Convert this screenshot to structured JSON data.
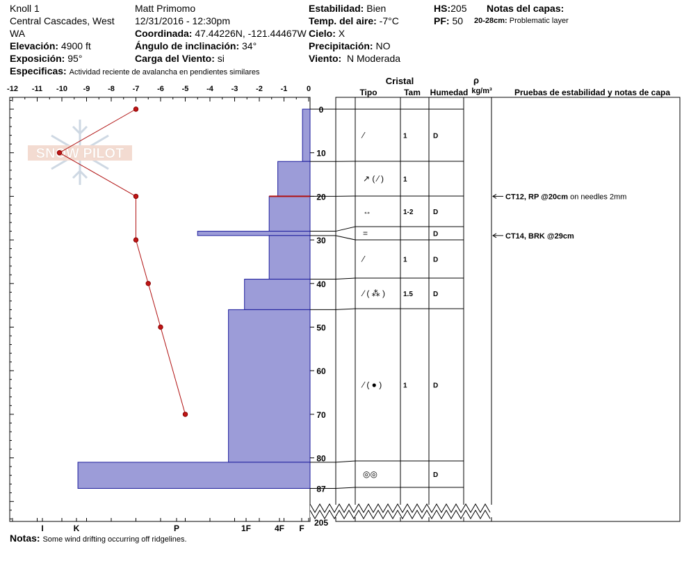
{
  "header": {
    "location": "Knoll 1",
    "region": "Central Cascades, West",
    "state": "WA",
    "elevation_label": "Elevación:",
    "elevation": "4900 ft",
    "aspect_label": "Exposición:",
    "aspect": "95°",
    "specifics_label": "Especificas:",
    "specifics": "Actividad reciente de avalancha en pendientes similares",
    "observer": "Matt Primomo",
    "datetime": "12/31/2016 - 12:30pm",
    "coord_label": "Coordinada:",
    "coord": "47.44226N, -121.44467W",
    "slope_label": "Ángulo de inclinación:",
    "slope": "34°",
    "wind_load_label": "Carga del Viento:",
    "wind_load": "si",
    "stability_label": "Estabilidad:",
    "stability": "Bien",
    "air_temp_label": "Temp. del aire:",
    "air_temp": "-7°C",
    "sky_label": "Cielo:",
    "sky": "X",
    "precip_label": "Precipitación:",
    "precip": "NO",
    "wind_label": "Viento:",
    "wind": "N Moderada",
    "hs_label": "HS:",
    "hs": "205",
    "pf_label": "PF:",
    "pf": "50",
    "notes_layers_label": "Notas del capas:",
    "layer_note_depth": "20-28cm:",
    "layer_note": "Problematic layer"
  },
  "footer": {
    "notes_label": "Notas:",
    "notes": "Some wind drifting occurring off ridgelines."
  },
  "watermark": "SNOW PILOT",
  "table": {
    "crystal_label": "Cristal",
    "rho_label": "ρ",
    "type_label": "Tipo",
    "size_label": "Tam",
    "moisture_label": "Humedad",
    "density_unit": "kg/m³",
    "tests_label": "Pruebas de estabilidad y notas de capa"
  },
  "chart_data": {
    "type": "snow-profile",
    "temp_axis": {
      "ticks": [
        -12,
        -11,
        -10,
        -9,
        -8,
        -7,
        -6,
        -5,
        -4,
        -3,
        -2,
        -1,
        0
      ],
      "range": [
        -12,
        0
      ]
    },
    "depth_ticks": [
      0,
      10,
      20,
      30,
      40,
      50,
      60,
      70,
      80,
      87
    ],
    "depth_bottom_label": "205",
    "hardness_labels": [
      "I",
      "K",
      "P",
      "1F",
      "4F",
      "F"
    ],
    "temperature_profile": [
      {
        "depth": 0,
        "temp": -7.0
      },
      {
        "depth": 10,
        "temp": -10.1
      },
      {
        "depth": 20,
        "temp": -7.0
      },
      {
        "depth": 30,
        "temp": -7.0
      },
      {
        "depth": 40,
        "temp": -6.5
      },
      {
        "depth": 50,
        "temp": -6.0
      },
      {
        "depth": 70,
        "temp": -5.0
      }
    ],
    "layers": [
      {
        "top": 0,
        "bottom": 12,
        "hardness": -0.25
      },
      {
        "top": 12,
        "bottom": 20,
        "hardness": -1.25
      },
      {
        "top": 20,
        "bottom": 28,
        "hardness": -1.6
      },
      {
        "top": 28,
        "bottom": 29,
        "hardness": -4.5
      },
      {
        "top": 29,
        "bottom": 39,
        "hardness": -1.6
      },
      {
        "top": 39,
        "bottom": 46,
        "hardness": -2.6
      },
      {
        "top": 46,
        "bottom": 81,
        "hardness": -3.25
      },
      {
        "top": 81,
        "bottom": 87,
        "hardness": -9.35
      }
    ],
    "crystal_rows": [
      {
        "type": "⁄",
        "size": "1",
        "moisture": "D"
      },
      {
        "type": "↗ ( ⁄ )",
        "size": "1",
        "moisture": ""
      },
      {
        "type": "↔",
        "size": "1-2",
        "moisture": "D"
      },
      {
        "type": "=",
        "size": "",
        "moisture": "D"
      },
      {
        "type": "⁄",
        "size": "1",
        "moisture": "D"
      },
      {
        "type": "⁄ ( ⁂ )",
        "size": "1.5",
        "moisture": "D"
      },
      {
        "type": "⁄ ( ● )",
        "size": "1",
        "moisture": "D"
      },
      {
        "type": "◎◎",
        "size": "",
        "moisture": "D"
      }
    ],
    "stability_tests": [
      {
        "depth": 20,
        "result": "CT12, RP @20cm",
        "note": "on needles 2mm"
      },
      {
        "depth": 29,
        "result": "CT14, BRK @29cm",
        "note": ""
      }
    ]
  }
}
